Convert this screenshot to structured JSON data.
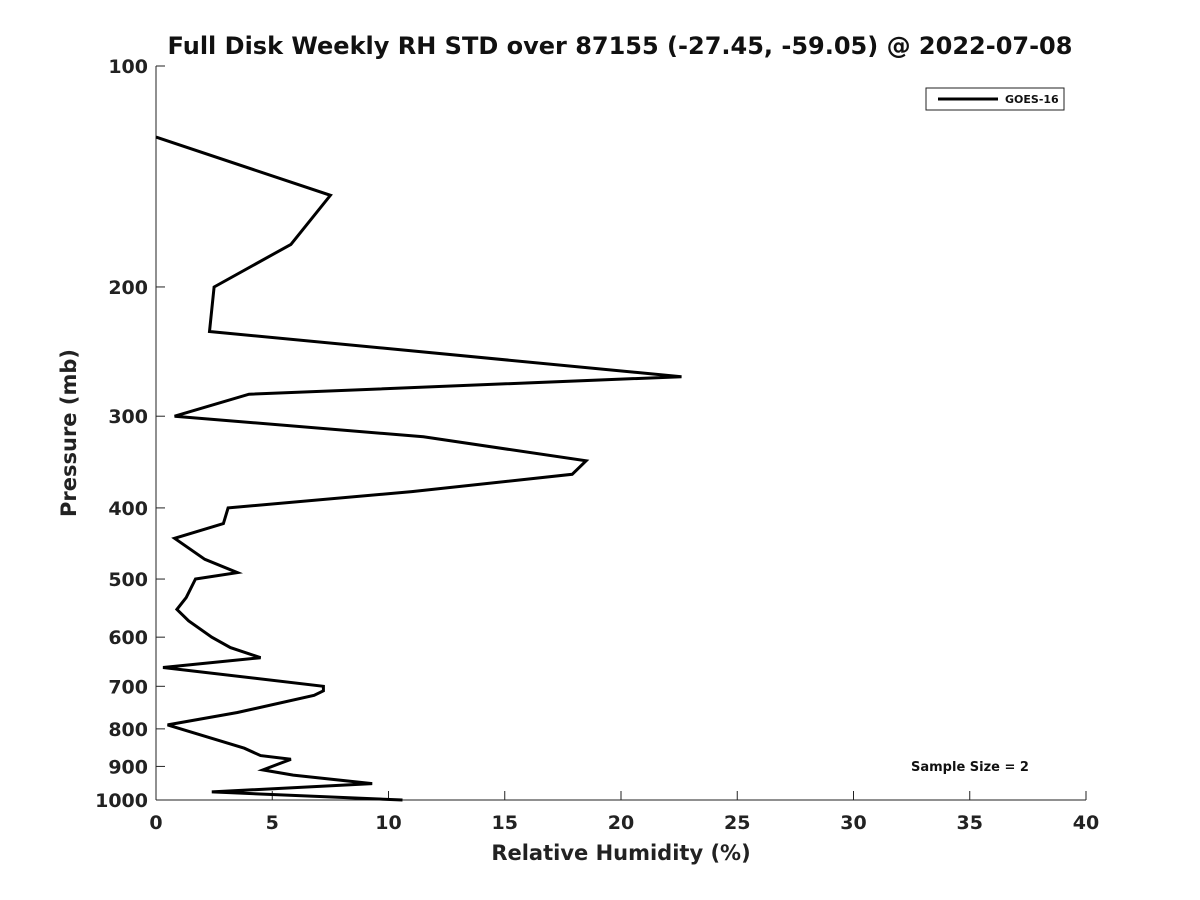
{
  "chart_data": {
    "type": "line",
    "title": "Full Disk Weekly RH STD over 87155 (-27.45, -59.05) @ 2022-07-08",
    "xlabel": "Relative Humidity (%)",
    "ylabel": "Pressure (mb)",
    "xlim": [
      0,
      40
    ],
    "ylim": [
      1000,
      100
    ],
    "y_scale": "log",
    "x_ticks": [
      0,
      5,
      10,
      15,
      20,
      25,
      30,
      35,
      40
    ],
    "x_tick_labels": [
      "0",
      "5",
      "10",
      "15",
      "20",
      "25",
      "30",
      "35",
      "40"
    ],
    "y_ticks": [
      100,
      200,
      300,
      400,
      500,
      600,
      700,
      800,
      900,
      1000
    ],
    "y_tick_labels": [
      "100",
      "200",
      "300",
      "400",
      "500",
      "600",
      "700",
      "800",
      "900",
      "1000"
    ],
    "grid": false,
    "legend_position": "top-right",
    "series": [
      {
        "name": "GOES-16",
        "color": "#000000",
        "x": [
          0,
          7.5,
          5.8,
          2.5,
          2.3,
          22.6,
          4.0,
          0.8,
          11.5,
          18.5,
          17.9,
          11.0,
          3.1,
          2.9,
          0.8,
          2.1,
          3.5,
          1.7,
          1.3,
          0.9,
          1.4,
          2.4,
          3.2,
          4.5,
          0.3,
          7.2,
          7.2,
          6.8,
          3.5,
          0.5,
          3.8,
          4.5,
          5.8,
          4.6,
          5.9,
          9.3,
          2.4,
          10.6
        ],
        "y": [
          125,
          150,
          175,
          200,
          230,
          265,
          280,
          300,
          320,
          345,
          360,
          380,
          400,
          420,
          440,
          470,
          490,
          500,
          530,
          550,
          570,
          600,
          620,
          640,
          660,
          700,
          710,
          720,
          760,
          790,
          850,
          870,
          880,
          910,
          925,
          950,
          975,
          1000
        ]
      }
    ],
    "annotations": [
      "Sample Size = 2"
    ]
  }
}
